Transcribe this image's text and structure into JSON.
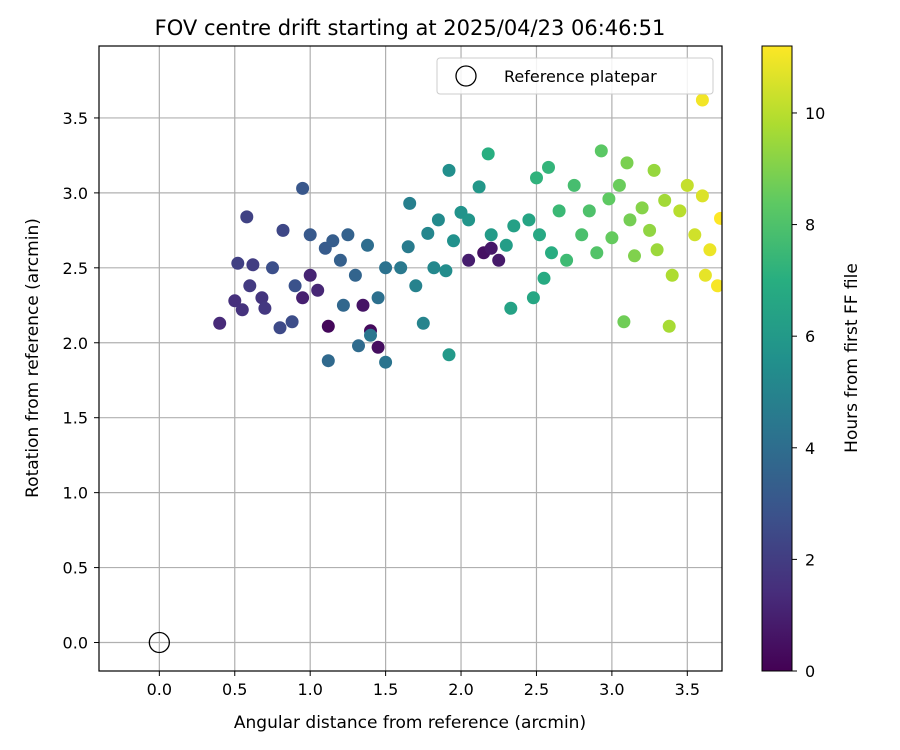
{
  "chart_data": {
    "type": "scatter",
    "title": "FOV centre drift starting at 2025/04/23 06:46:51",
    "xlabel": "Angular distance from reference (arcmin)",
    "ylabel": "Rotation from reference (arcmin)",
    "xlim": [
      -0.4,
      3.73
    ],
    "ylim": [
      -0.19,
      3.98
    ],
    "xticks": [
      "0.0",
      "0.5",
      "1.0",
      "1.5",
      "2.0",
      "2.5",
      "3.0",
      "3.5"
    ],
    "yticks": [
      "0.0",
      "0.5",
      "1.0",
      "1.5",
      "2.0",
      "2.5",
      "3.0",
      "3.5"
    ],
    "grid": true,
    "legend": {
      "position": "top-right",
      "entries": [
        "Reference platepar"
      ]
    },
    "reference_point": {
      "x": 0.0,
      "y": 0.0,
      "label": "Reference platepar"
    },
    "colorbar": {
      "label": "Hours from first FF file",
      "colormap": "viridis",
      "range": [
        0,
        11.2
      ],
      "ticks": [
        "0",
        "2",
        "4",
        "6",
        "8",
        "10"
      ]
    },
    "series": [
      {
        "colormap_values": "hours",
        "points": [
          [
            1.12,
            2.11,
            0.2
          ],
          [
            1.4,
            2.08,
            0.3
          ],
          [
            1.45,
            1.97,
            0.4
          ],
          [
            1.35,
            2.25,
            0.6
          ],
          [
            2.15,
            2.6,
            0.5
          ],
          [
            2.2,
            2.63,
            0.7
          ],
          [
            2.25,
            2.55,
            0.8
          ],
          [
            2.05,
            2.55,
            0.9
          ],
          [
            0.95,
            2.3,
            1.0
          ],
          [
            1.0,
            2.45,
            1.1
          ],
          [
            1.05,
            2.35,
            1.2
          ],
          [
            0.4,
            2.13,
            1.3
          ],
          [
            0.5,
            2.28,
            1.5
          ],
          [
            0.55,
            2.22,
            1.6
          ],
          [
            0.68,
            2.3,
            1.7
          ],
          [
            0.7,
            2.23,
            1.8
          ],
          [
            0.6,
            2.38,
            1.9
          ],
          [
            0.62,
            2.52,
            2.0
          ],
          [
            0.52,
            2.53,
            2.1
          ],
          [
            0.58,
            2.84,
            2.2
          ],
          [
            0.82,
            2.75,
            2.4
          ],
          [
            0.8,
            2.1,
            2.5
          ],
          [
            0.88,
            2.14,
            2.6
          ],
          [
            0.75,
            2.5,
            2.7
          ],
          [
            0.9,
            2.38,
            2.8
          ],
          [
            0.95,
            3.03,
            3.0
          ],
          [
            1.0,
            2.72,
            3.1
          ],
          [
            1.1,
            2.63,
            3.2
          ],
          [
            1.15,
            2.68,
            3.3
          ],
          [
            1.2,
            2.55,
            3.4
          ],
          [
            1.25,
            2.72,
            3.5
          ],
          [
            1.3,
            2.45,
            3.6
          ],
          [
            1.22,
            2.25,
            3.7
          ],
          [
            1.12,
            1.88,
            3.8
          ],
          [
            1.32,
            1.98,
            3.9
          ],
          [
            1.38,
            2.65,
            4.0
          ],
          [
            1.45,
            2.3,
            4.1
          ],
          [
            1.5,
            2.5,
            4.2
          ],
          [
            1.5,
            1.87,
            4.3
          ],
          [
            1.4,
            2.05,
            4.4
          ],
          [
            1.6,
            2.5,
            4.5
          ],
          [
            1.65,
            2.64,
            4.6
          ],
          [
            1.66,
            2.93,
            4.8
          ],
          [
            1.7,
            2.38,
            4.9
          ],
          [
            1.75,
            2.13,
            5.0
          ],
          [
            1.78,
            2.73,
            5.1
          ],
          [
            1.82,
            2.5,
            5.2
          ],
          [
            1.85,
            2.82,
            5.3
          ],
          [
            1.9,
            2.48,
            5.4
          ],
          [
            1.92,
            3.15,
            5.5
          ],
          [
            1.95,
            2.68,
            5.6
          ],
          [
            2.0,
            2.87,
            5.7
          ],
          [
            2.05,
            2.82,
            5.8
          ],
          [
            2.12,
            3.04,
            5.9
          ],
          [
            1.92,
            1.92,
            6.0
          ],
          [
            2.2,
            2.72,
            6.1
          ],
          [
            2.3,
            2.65,
            6.2
          ],
          [
            2.35,
            2.78,
            6.3
          ],
          [
            2.33,
            2.23,
            6.4
          ],
          [
            2.45,
            2.82,
            6.5
          ],
          [
            2.48,
            2.3,
            6.6
          ],
          [
            2.52,
            2.72,
            6.7
          ],
          [
            2.55,
            2.43,
            6.8
          ],
          [
            2.6,
            2.6,
            6.9
          ],
          [
            2.18,
            3.26,
            7.0
          ],
          [
            2.5,
            3.1,
            7.2
          ],
          [
            2.58,
            3.17,
            7.3
          ],
          [
            2.65,
            2.88,
            7.5
          ],
          [
            2.7,
            2.55,
            7.6
          ],
          [
            2.75,
            3.05,
            7.8
          ],
          [
            2.8,
            2.72,
            7.9
          ],
          [
            2.85,
            2.88,
            8.0
          ],
          [
            2.9,
            2.6,
            8.1
          ],
          [
            2.93,
            3.28,
            8.3
          ],
          [
            2.98,
            2.96,
            8.4
          ],
          [
            3.0,
            2.7,
            8.5
          ],
          [
            3.05,
            3.05,
            8.6
          ],
          [
            3.08,
            2.14,
            8.7
          ],
          [
            3.12,
            2.82,
            8.8
          ],
          [
            3.1,
            3.2,
            8.9
          ],
          [
            3.15,
            2.58,
            9.0
          ],
          [
            3.2,
            2.9,
            9.1
          ],
          [
            3.25,
            2.75,
            9.3
          ],
          [
            3.28,
            3.15,
            9.4
          ],
          [
            3.3,
            2.62,
            9.5
          ],
          [
            3.35,
            2.95,
            9.6
          ],
          [
            3.38,
            2.11,
            9.7
          ],
          [
            3.4,
            2.45,
            9.8
          ],
          [
            3.45,
            2.88,
            10.0
          ],
          [
            3.5,
            3.05,
            10.2
          ],
          [
            3.55,
            2.72,
            10.4
          ],
          [
            3.6,
            2.98,
            10.6
          ],
          [
            3.62,
            2.45,
            10.8
          ],
          [
            3.65,
            2.62,
            10.9
          ],
          [
            3.6,
            3.62,
            11.0
          ],
          [
            3.7,
            2.38,
            11.1
          ],
          [
            3.72,
            2.83,
            11.2
          ]
        ]
      }
    ]
  }
}
